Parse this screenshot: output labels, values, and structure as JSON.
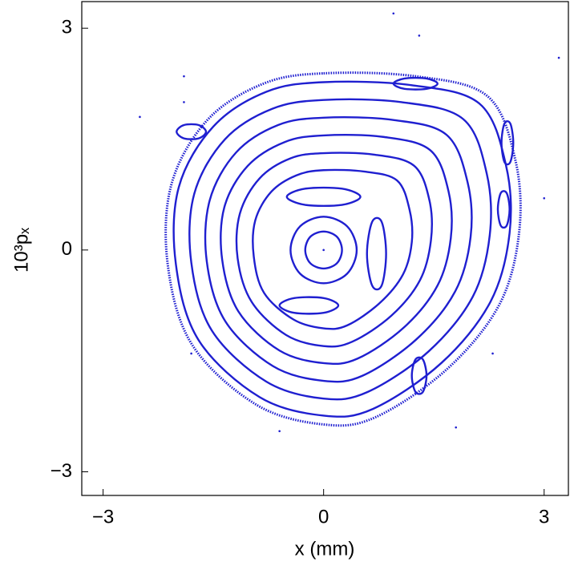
{
  "chart_data": {
    "type": "line",
    "xlabel": "x (mm)",
    "ylabel": "10³pₓ",
    "xlim": [
      -3.29,
      3.33
    ],
    "ylim": [
      -3.32,
      3.36
    ],
    "xticks": [
      {
        "value": -3,
        "label": "−3"
      },
      0,
      3
    ],
    "yticks": [
      {
        "value": -3,
        "label": "−3"
      },
      0,
      3
    ],
    "series": [
      {
        "color": "#1f1fd0",
        "style": "dotted",
        "x": [
          0,
          1.25,
          2.23,
          2.61,
          2.66,
          2.39,
          1.68,
          0.71,
          0,
          -0.92,
          -1.79,
          -2.12,
          -2.07,
          -1.58,
          -0.82
        ],
        "y": [
          2.39,
          2.35,
          2.08,
          1.21,
          0.24,
          -0.74,
          -1.61,
          -2.26,
          -2.36,
          -2.09,
          -1.28,
          -0.2,
          0.89,
          1.76,
          2.25
        ]
      },
      {
        "color": "#1f1fd0",
        "style": "closed",
        "x": [
          0,
          1.19,
          2.12,
          2.48,
          2.53,
          2.27,
          1.6,
          0.67,
          0,
          -0.87,
          -1.7,
          -2.01,
          -1.97,
          -1.5,
          -0.78
        ],
        "y": [
          2.27,
          2.23,
          1.98,
          1.15,
          0.23,
          -0.7,
          -1.53,
          -2.15,
          -2.24,
          -1.99,
          -1.22,
          -0.19,
          0.85,
          1.67,
          2.14
        ]
      },
      {
        "color": "#1f1fd0",
        "style": "closed",
        "x": [
          0,
          1.06,
          1.9,
          2.22,
          2.26,
          2.03,
          1.43,
          0.6,
          0,
          -0.78,
          -1.52,
          -1.8,
          -1.76,
          -1.34,
          -0.7
        ],
        "y": [
          2.03,
          2.0,
          1.77,
          1.03,
          0.2,
          -0.63,
          -1.37,
          -1.92,
          -2.01,
          -1.78,
          -1.09,
          -0.17,
          0.76,
          1.5,
          1.91
        ]
      },
      {
        "color": "#1f1fd0",
        "style": "closed",
        "x": [
          0,
          0.94,
          1.67,
          1.96,
          2.0,
          1.79,
          1.26,
          0.53,
          0,
          -0.69,
          -1.34,
          -1.59,
          -1.55,
          -1.19,
          -0.62
        ],
        "y": [
          1.79,
          1.76,
          1.56,
          0.91,
          0.18,
          -0.56,
          -1.21,
          -1.7,
          -1.77,
          -1.57,
          -0.96,
          -0.15,
          0.67,
          1.32,
          1.69
        ]
      },
      {
        "color": "#1f1fd0",
        "style": "closed",
        "x": [
          0,
          0.81,
          1.45,
          1.7,
          1.73,
          1.55,
          1.09,
          0.46,
          0,
          -0.6,
          -1.16,
          -1.38,
          -1.35,
          -1.03,
          -0.53
        ],
        "y": [
          1.55,
          1.53,
          1.35,
          0.79,
          0.16,
          -0.48,
          -1.05,
          -1.47,
          -1.53,
          -1.36,
          -0.83,
          -0.13,
          0.58,
          1.14,
          1.46
        ]
      },
      {
        "color": "#1f1fd0",
        "style": "closed",
        "x": [
          0,
          0.69,
          1.23,
          1.44,
          1.46,
          1.31,
          0.92,
          0.39,
          0,
          -0.51,
          -0.98,
          -1.17,
          -1.14,
          -0.87,
          -0.45
        ],
        "y": [
          1.31,
          1.29,
          1.14,
          0.67,
          0.13,
          -0.41,
          -0.89,
          -1.24,
          -1.3,
          -1.15,
          -0.7,
          -0.11,
          0.49,
          0.97,
          1.24
        ]
      },
      {
        "color": "#1f1fd0",
        "style": "closed",
        "x": [
          0,
          0.56,
          1.0,
          1.17,
          1.2,
          1.08,
          0.76,
          0.32,
          0,
          -0.41,
          -0.81,
          -0.95,
          -0.93,
          -0.71,
          -0.37
        ],
        "y": [
          1.08,
          1.06,
          0.94,
          0.54,
          0.11,
          -0.33,
          -0.72,
          -1.02,
          -1.06,
          -0.94,
          -0.58,
          -0.09,
          0.4,
          0.79,
          1.01
        ]
      },
      {
        "color": "#1f1fd0",
        "style": "closed",
        "x": [
          0.45,
          0.32,
          0,
          -0.32,
          -0.45,
          -0.32,
          0,
          0.32
        ],
        "y": [
          0,
          0.32,
          0.45,
          0.32,
          0,
          -0.32,
          -0.45,
          -0.32
        ]
      },
      {
        "color": "#1f1fd0",
        "style": "closed",
        "x": [
          0.25,
          0.18,
          0,
          -0.18,
          -0.25,
          -0.18,
          0,
          0.18
        ],
        "y": [
          0,
          0.18,
          0.25,
          0.18,
          0,
          -0.18,
          -0.25,
          -0.18
        ]
      },
      {
        "color": "#1f1fd0",
        "style": "closed",
        "x": [
          0.5,
          0.25,
          -0.25,
          -0.5,
          -0.25,
          0.25
        ],
        "y": [
          0.72,
          0.83,
          0.83,
          0.72,
          0.61,
          0.61
        ]
      },
      {
        "color": "#1f1fd0",
        "style": "closed",
        "x": [
          0.85,
          0.79,
          0.66,
          0.59,
          0.66,
          0.79
        ],
        "y": [
          -0.05,
          0.38,
          0.38,
          -0.05,
          -0.48,
          -0.48
        ]
      },
      {
        "color": "#1f1fd0",
        "style": "closed",
        "x": [
          0.2,
          0,
          -0.4,
          -0.6,
          -0.4,
          0
        ],
        "y": [
          -0.75,
          -0.65,
          -0.65,
          -0.75,
          -0.85,
          -0.85
        ]
      },
      {
        "color": "#1f1fd0",
        "style": "closed",
        "x": [
          1.55,
          1.4,
          1.1,
          0.95,
          1.1,
          1.4
        ],
        "y": [
          2.25,
          2.32,
          2.32,
          2.25,
          2.18,
          2.18
        ]
      },
      {
        "color": "#1f1fd0",
        "style": "closed",
        "x": [
          2.58,
          2.54,
          2.46,
          2.42,
          2.46,
          2.54
        ],
        "y": [
          1.45,
          1.71,
          1.71,
          1.45,
          1.19,
          1.19
        ]
      },
      {
        "color": "#1f1fd0",
        "style": "closed",
        "x": [
          2.53,
          2.49,
          2.41,
          2.37,
          2.41,
          2.49
        ],
        "y": [
          0.55,
          0.77,
          0.77,
          0.55,
          0.33,
          0.33
        ]
      },
      {
        "color": "#1f1fd0",
        "style": "closed",
        "x": [
          -1.6,
          -1.7,
          -1.9,
          -2.0,
          -1.9,
          -1.7
        ],
        "y": [
          1.6,
          1.69,
          1.69,
          1.6,
          1.51,
          1.51
        ]
      },
      {
        "color": "#1f1fd0",
        "style": "closed",
        "x": [
          1.4,
          1.35,
          1.25,
          1.2,
          1.25,
          1.35
        ],
        "y": [
          -1.7,
          -1.48,
          -1.48,
          -1.7,
          -1.92,
          -1.92
        ]
      },
      {
        "color": "#1f1fd0",
        "style": "points",
        "x": [
          0,
          0.95,
          1.3,
          3.2,
          -1.9,
          -2.5,
          -1.8,
          2.3,
          -0.6,
          1.8,
          3.0,
          -1.9
        ],
        "y": [
          0,
          3.2,
          2.9,
          2.6,
          2.35,
          1.8,
          -1.4,
          -1.4,
          -2.45,
          -2.4,
          0.7,
          2.0
        ]
      }
    ]
  }
}
